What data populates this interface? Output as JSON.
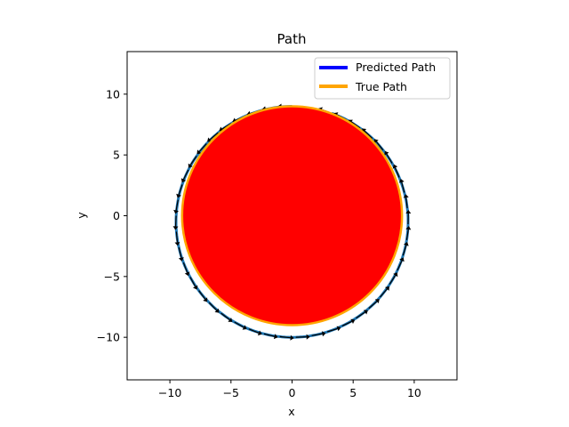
{
  "chart_data": {
    "type": "line",
    "title": "Path",
    "xlabel": "x",
    "ylabel": "y",
    "xlim": [
      -13.5,
      13.5
    ],
    "ylim": [
      -13.5,
      13.5
    ],
    "xticks": [
      -10,
      -5,
      0,
      5,
      10
    ],
    "yticks": [
      -10,
      -5,
      0,
      5,
      10
    ],
    "xtick_labels": [
      "−10",
      "−5",
      "0",
      "5",
      "10"
    ],
    "ytick_labels": [
      "−10",
      "−5",
      "0",
      "5",
      "10"
    ],
    "grid": false,
    "legend_position": "top-right",
    "series": [
      {
        "name": "Predicted Path",
        "color": "#0000ff",
        "shape": "circle",
        "center": [
          0,
          -0.5
        ],
        "radius": 9.5,
        "start_angle_deg": 90,
        "end_angle_deg": 430,
        "arrows": true
      },
      {
        "name": "True Path",
        "color": "#ffa500",
        "shape": "circle",
        "center": [
          0,
          0
        ],
        "radius": 9,
        "fill": "#ff0000"
      }
    ]
  }
}
